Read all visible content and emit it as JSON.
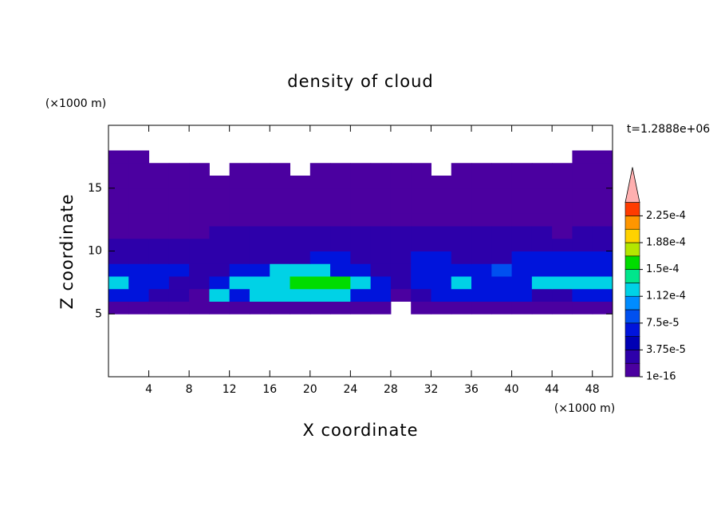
{
  "chart_data": {
    "type": "contour",
    "title": "density of cloud",
    "xlabel": "X coordinate",
    "ylabel": "Z coordinate",
    "x_unit": "(×1000 m)",
    "y_unit": "(×1000 m)",
    "time_label": "t=1.2888e+06",
    "xlim": [
      0,
      50
    ],
    "ylim": [
      0,
      20
    ],
    "xticks": [
      4,
      8,
      12,
      16,
      20,
      24,
      28,
      32,
      36,
      40,
      44,
      48
    ],
    "yticks": [
      5,
      10,
      15
    ],
    "x": [
      1,
      3,
      5,
      7,
      9,
      11,
      13,
      15,
      17,
      19,
      21,
      23,
      25,
      27,
      29,
      31,
      33,
      35,
      37,
      39,
      41,
      43,
      45,
      47,
      49
    ],
    "y": [
      5.5,
      6.5,
      7.5,
      8.5,
      9.5,
      10.5,
      11.5,
      12.5,
      13.5,
      14.5,
      15.5,
      16.5,
      17.5
    ],
    "z": [
      [
        1e-05,
        1e-05,
        1e-05,
        1e-05,
        1e-05,
        1e-05,
        1e-05,
        1e-05,
        1e-05,
        1e-05,
        1e-05,
        1e-05,
        1e-05,
        1e-05,
        null,
        1e-05,
        1e-05,
        1e-05,
        1e-05,
        1e-05,
        1e-05,
        1e-05,
        1e-05,
        1e-05,
        1e-05
      ],
      [
        6e-05,
        6e-05,
        3e-05,
        3e-05,
        1e-05,
        0.00012,
        6e-05,
        0.00012,
        0.00012,
        0.00012,
        0.00012,
        0.00012,
        6e-05,
        6e-05,
        1e-05,
        3e-05,
        6e-05,
        6e-05,
        6e-05,
        6e-05,
        6e-05,
        3e-05,
        3e-05,
        6e-05,
        6e-05
      ],
      [
        0.00012,
        6e-05,
        6e-05,
        3e-05,
        3e-05,
        6e-05,
        0.00012,
        0.00012,
        0.00012,
        0.000155,
        0.000155,
        0.000155,
        0.00012,
        6e-05,
        3e-05,
        6e-05,
        6e-05,
        0.00012,
        6e-05,
        6e-05,
        6e-05,
        0.00012,
        0.00012,
        0.00012,
        0.00012
      ],
      [
        6e-05,
        6e-05,
        6e-05,
        6e-05,
        3e-05,
        3e-05,
        6e-05,
        6e-05,
        0.00012,
        0.00012,
        0.00012,
        6e-05,
        6e-05,
        3e-05,
        3e-05,
        6e-05,
        6e-05,
        6e-05,
        6e-05,
        9e-05,
        6e-05,
        6e-05,
        6e-05,
        6e-05,
        6e-05
      ],
      [
        3e-05,
        3e-05,
        3e-05,
        3e-05,
        3e-05,
        3e-05,
        3e-05,
        3e-05,
        3e-05,
        3e-05,
        6e-05,
        6e-05,
        3e-05,
        3e-05,
        3e-05,
        6e-05,
        6e-05,
        3e-05,
        3e-05,
        3e-05,
        6e-05,
        6e-05,
        6e-05,
        6e-05,
        6e-05
      ],
      [
        3e-05,
        3e-05,
        3e-05,
        3e-05,
        3e-05,
        3e-05,
        3e-05,
        3e-05,
        3e-05,
        3e-05,
        3e-05,
        3e-05,
        3e-05,
        3e-05,
        3e-05,
        3e-05,
        3e-05,
        3e-05,
        3e-05,
        3e-05,
        3e-05,
        3e-05,
        3e-05,
        3e-05,
        3e-05
      ],
      [
        1e-05,
        1e-05,
        1e-05,
        1e-05,
        1e-05,
        3e-05,
        3e-05,
        3e-05,
        3e-05,
        3e-05,
        3e-05,
        3e-05,
        3e-05,
        3e-05,
        3e-05,
        3e-05,
        3e-05,
        3e-05,
        3e-05,
        3e-05,
        3e-05,
        3e-05,
        1e-05,
        3e-05,
        3e-05
      ],
      [
        1e-05,
        1e-05,
        1e-05,
        1e-05,
        1e-05,
        1e-05,
        1e-05,
        1e-05,
        1e-05,
        1e-05,
        1e-05,
        1e-05,
        1e-05,
        1e-05,
        1e-05,
        1e-05,
        1e-05,
        1e-05,
        1e-05,
        1e-05,
        1e-05,
        1e-05,
        1e-05,
        1e-05,
        1e-05
      ],
      [
        1e-05,
        1e-05,
        1e-05,
        1e-05,
        1e-05,
        1e-05,
        1e-05,
        1e-05,
        1e-05,
        1e-05,
        1e-05,
        1e-05,
        1e-05,
        1e-05,
        1e-05,
        1e-05,
        1e-05,
        1e-05,
        1e-05,
        1e-05,
        1e-05,
        1e-05,
        1e-05,
        1e-05,
        1e-05
      ],
      [
        1e-05,
        1e-05,
        1e-05,
        1e-05,
        1e-05,
        1e-05,
        1e-05,
        1e-05,
        1e-05,
        1e-05,
        1e-05,
        1e-05,
        1e-05,
        1e-05,
        1e-05,
        1e-05,
        1e-05,
        1e-05,
        1e-05,
        1e-05,
        1e-05,
        1e-05,
        1e-05,
        1e-05,
        1e-05
      ],
      [
        1e-05,
        1e-05,
        1e-05,
        1e-05,
        1e-05,
        1e-05,
        1e-05,
        1e-05,
        1e-05,
        1e-05,
        1e-05,
        1e-05,
        1e-05,
        1e-05,
        1e-05,
        1e-05,
        1e-05,
        1e-05,
        1e-05,
        1e-05,
        1e-05,
        1e-05,
        1e-05,
        1e-05,
        1e-05
      ],
      [
        1e-05,
        1e-05,
        1e-05,
        1e-05,
        1e-05,
        null,
        1e-05,
        1e-05,
        1e-05,
        null,
        1e-05,
        1e-05,
        1e-05,
        1e-05,
        1e-05,
        1e-05,
        null,
        1e-05,
        1e-05,
        1e-05,
        1e-05,
        1e-05,
        1e-05,
        1e-05,
        1e-05
      ],
      [
        1e-05,
        1e-05,
        null,
        null,
        null,
        null,
        null,
        null,
        null,
        null,
        null,
        null,
        null,
        null,
        null,
        null,
        null,
        null,
        null,
        null,
        null,
        null,
        null,
        1e-05,
        1e-05
      ]
    ],
    "levels": [
      1e-16,
      1.875e-05,
      3.75e-05,
      5.625e-05,
      7.5e-05,
      9.375e-05,
      0.0001125,
      0.00013125,
      0.00015,
      0.00016875,
      0.0001875,
      0.00020625,
      0.000225
    ],
    "clim": [
      1e-16,
      0.00024375
    ],
    "colors": [
      "#4b00a0",
      "#2d00aa",
      "#0000b4",
      "#0014dc",
      "#0050f0",
      "#008cff",
      "#00d2e6",
      "#00e68c",
      "#00dc00",
      "#b4e600",
      "#ffd200",
      "#ff9600",
      "#ff3c00"
    ],
    "extend_color": "#ffb0b0",
    "colorbar_ticks": [
      {
        "value": 1e-16,
        "label": "1e-16"
      },
      {
        "value": 3.75e-05,
        "label": "3.75e-5"
      },
      {
        "value": 7.5e-05,
        "label": "7.5e-5"
      },
      {
        "value": 0.0001125,
        "label": "1.12e-4"
      },
      {
        "value": 0.00015,
        "label": "1.5e-4"
      },
      {
        "value": 0.0001875,
        "label": "1.88e-4"
      },
      {
        "value": 0.000225,
        "label": "2.25e-4"
      }
    ]
  }
}
